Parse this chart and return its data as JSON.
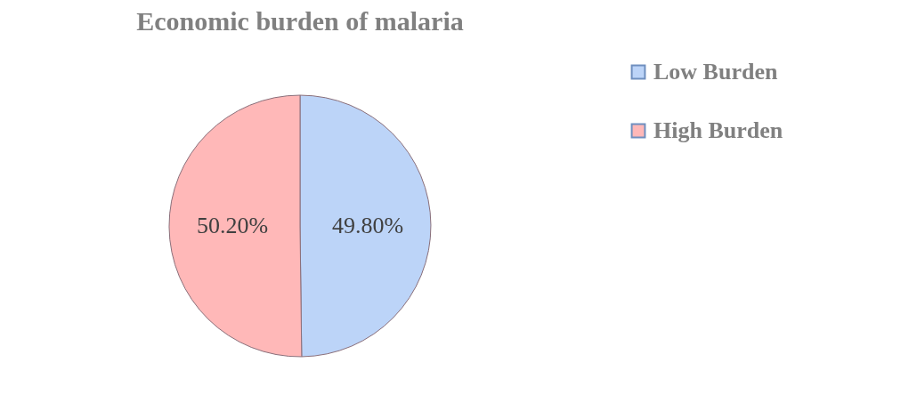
{
  "chart_data": {
    "type": "pie",
    "title": "Economic burden of malaria",
    "categories": [
      "Low Burden",
      "High Burden"
    ],
    "values": [
      49.8,
      50.2
    ],
    "colors": [
      "#bcd4f8",
      "#ffb8b8"
    ],
    "value_labels": [
      "49.80%",
      "50.20%"
    ],
    "legend": "right"
  }
}
